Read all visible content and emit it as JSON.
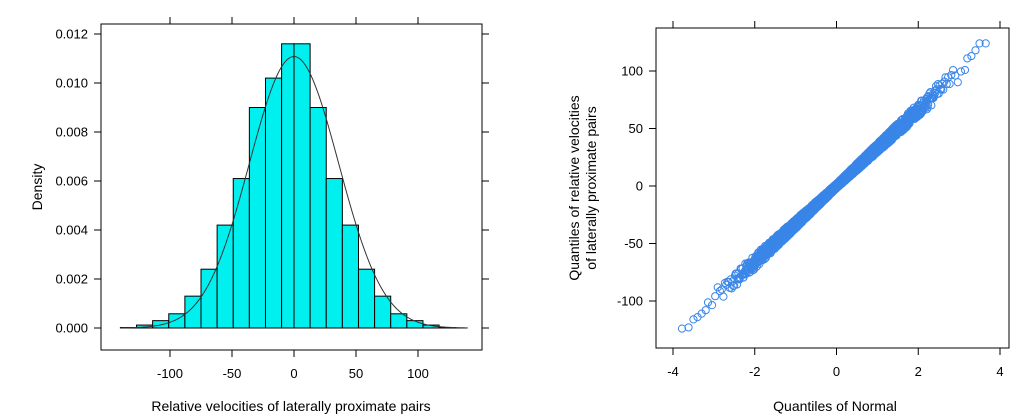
{
  "chart_data": [
    {
      "type": "bar",
      "subtype": "histogram-with-density-curve",
      "xlabel": "Relative velocities of laterally proximate pairs",
      "ylabel": "Density",
      "xlim": [
        -150,
        150
      ],
      "ylim": [
        0,
        0.0125
      ],
      "xticks": [
        -100,
        -50,
        0,
        50,
        100
      ],
      "xtick_labels": [
        "-100",
        "-50",
        "0",
        "50",
        "100"
      ],
      "yticks": [
        0,
        0.002,
        0.004,
        0.006,
        0.008,
        0.01,
        0.012
      ],
      "ytick_labels": [
        "0.000",
        "0.002",
        "0.004",
        "0.006",
        "0.008",
        "0.010",
        "0.012"
      ],
      "bin_edges": [
        -140,
        -127,
        -114,
        -101,
        -88,
        -75,
        -62,
        -49,
        -36,
        -23,
        -10,
        0,
        13,
        26,
        39,
        52,
        65,
        78,
        91,
        104,
        117,
        130
      ],
      "values": [
        2e-05,
        0.00012,
        0.0003,
        0.00058,
        0.0013,
        0.0024,
        0.0042,
        0.0061,
        0.009,
        0.0102,
        0.0116,
        0.0116,
        0.009,
        0.0061,
        0.0042,
        0.0024,
        0.0013,
        0.00058,
        0.0003,
        0.00012,
        2e-05
      ],
      "density_curve": {
        "distribution": "normal",
        "mean": 0,
        "sd": 36,
        "range": [
          -140,
          140
        ]
      },
      "bar_color": "#00f0f0",
      "bar_edge_color": "#000000",
      "grid": false
    },
    {
      "type": "scatter",
      "subtype": "normal-qq-plot",
      "xlabel": "Quantiles of Normal",
      "ylabel_lines": [
        "Quantiles of relative velocities",
        "of laterally proximate pairs"
      ],
      "xlim": [
        -4.3,
        4.3
      ],
      "ylim": [
        -145,
        145
      ],
      "xticks": [
        -4,
        -2,
        0,
        2,
        4
      ],
      "xtick_labels": [
        "-4",
        "-2",
        "0",
        "2",
        "4"
      ],
      "yticks": [
        -100,
        -50,
        0,
        50,
        100
      ],
      "ytick_labels": [
        "-100",
        "-50",
        "0",
        "50",
        "100"
      ],
      "n_points": 3000,
      "relation": {
        "slope": 33,
        "intercept": 0
      },
      "extreme_points": [
        {
          "x": -3.78,
          "y": -124
        },
        {
          "x": -3.62,
          "y": -123
        },
        {
          "x": -3.5,
          "y": -116
        },
        {
          "x": -3.4,
          "y": -114
        },
        {
          "x": -3.3,
          "y": -111
        },
        {
          "x": -3.2,
          "y": -108
        },
        {
          "x": 3.2,
          "y": 111
        },
        {
          "x": 3.3,
          "y": 113
        },
        {
          "x": 3.4,
          "y": 118
        },
        {
          "x": 3.5,
          "y": 124
        },
        {
          "x": 3.65,
          "y": 124
        }
      ],
      "marker": "open-circle",
      "marker_color": "#3a86e8",
      "grid": false
    }
  ]
}
